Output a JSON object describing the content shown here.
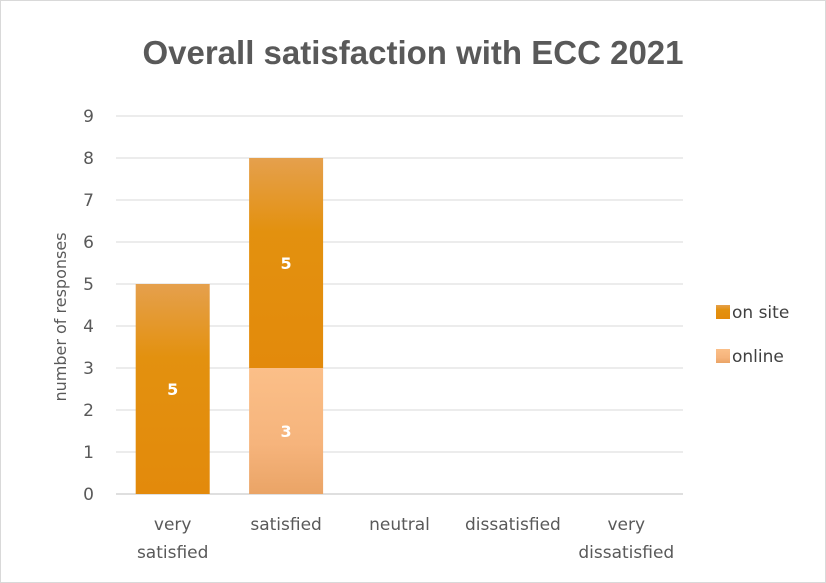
{
  "chart_data": {
    "type": "bar",
    "stacked": true,
    "title": "Overall satisfaction with ECC 2021",
    "xlabel": "",
    "ylabel": "number of responses",
    "ylim": [
      0,
      9
    ],
    "yticks": [
      0,
      1,
      2,
      3,
      4,
      5,
      6,
      7,
      8,
      9
    ],
    "grid": true,
    "legend_position": "right",
    "categories": [
      [
        "very",
        "satisfied"
      ],
      [
        "satisfied"
      ],
      [
        "neutral"
      ],
      [
        "dissatisfied"
      ],
      [
        "very",
        "dissatisfied"
      ]
    ],
    "series": [
      {
        "name": "online",
        "values": [
          0,
          3,
          0,
          0,
          0
        ],
        "color": "#f9bd87",
        "color_dark": "#eaa466"
      },
      {
        "name": "on site",
        "values": [
          5,
          5,
          0,
          0,
          0
        ],
        "color": "#e38a0b",
        "color_light": "#e5a04d"
      }
    ],
    "legend_order": [
      "on site",
      "online"
    ]
  }
}
